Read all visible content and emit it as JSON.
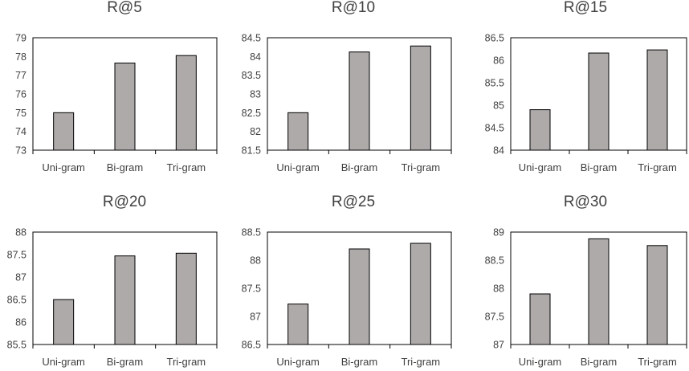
{
  "colors": {
    "bar_fill": "#aeaaaa",
    "bar_stroke": "#000000",
    "text": "#404040"
  },
  "chart_data": [
    {
      "type": "bar",
      "title": "R@5",
      "categories": [
        "Uni-gram",
        "Bi-gram",
        "Tri-gram"
      ],
      "values": [
        75.0,
        77.65,
        78.05
      ],
      "ylim": [
        73,
        79
      ],
      "yticks": [
        "73",
        "74",
        "75",
        "76",
        "77",
        "78",
        "79"
      ],
      "xlabel": "",
      "ylabel": "",
      "grid": false,
      "legend": "none"
    },
    {
      "type": "bar",
      "title": "R@10",
      "categories": [
        "Uni-gram",
        "Bi-gram",
        "Tri-gram"
      ],
      "values": [
        82.5,
        84.12,
        84.28
      ],
      "ylim": [
        81.5,
        84.5
      ],
      "yticks": [
        "81.5",
        "82",
        "82.5",
        "83",
        "83.5",
        "84",
        "84.5"
      ],
      "xlabel": "",
      "ylabel": "",
      "grid": false,
      "legend": "none"
    },
    {
      "type": "bar",
      "title": "R@15",
      "categories": [
        "Uni-gram",
        "Bi-gram",
        "Tri-gram"
      ],
      "values": [
        84.9,
        86.16,
        86.23
      ],
      "ylim": [
        84,
        86.5
      ],
      "yticks": [
        "84",
        "84.5",
        "85",
        "85.5",
        "86",
        "86.5"
      ],
      "xlabel": "",
      "ylabel": "",
      "grid": false,
      "legend": "none"
    },
    {
      "type": "bar",
      "title": "R@20",
      "categories": [
        "Uni-gram",
        "Bi-gram",
        "Tri-gram"
      ],
      "values": [
        86.5,
        87.47,
        87.53
      ],
      "ylim": [
        85.5,
        88
      ],
      "yticks": [
        "85.5",
        "86",
        "86.5",
        "87",
        "87.5",
        "88"
      ],
      "xlabel": "",
      "ylabel": "",
      "grid": false,
      "legend": "none"
    },
    {
      "type": "bar",
      "title": "R@25",
      "categories": [
        "Uni-gram",
        "Bi-gram",
        "Tri-gram"
      ],
      "values": [
        87.22,
        88.2,
        88.3
      ],
      "ylim": [
        86.5,
        88.5
      ],
      "yticks": [
        "86.5",
        "87",
        "87.5",
        "88",
        "88.5"
      ],
      "xlabel": "",
      "ylabel": "",
      "grid": false,
      "legend": "none"
    },
    {
      "type": "bar",
      "title": "R@30",
      "categories": [
        "Uni-gram",
        "Bi-gram",
        "Tri-gram"
      ],
      "values": [
        87.9,
        88.88,
        88.76
      ],
      "ylim": [
        87,
        89
      ],
      "yticks": [
        "87",
        "87.5",
        "88",
        "88.5",
        "89"
      ],
      "xlabel": "",
      "ylabel": "",
      "grid": false,
      "legend": "none"
    }
  ]
}
